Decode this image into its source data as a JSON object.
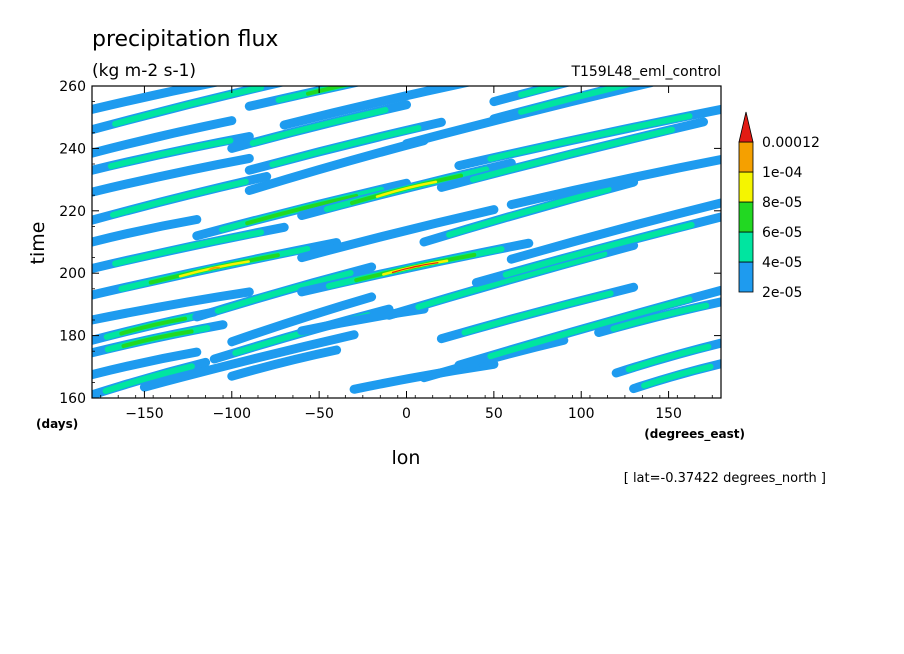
{
  "chart_data": {
    "type": "heatmap",
    "title": "precipitation flux",
    "subtitle": "(kg m-2 s-1)",
    "run_label": "T159L48_eml_control",
    "xlabel": "lon",
    "x_units": "(degrees_east)",
    "ylabel": "time",
    "y_units": "(days)",
    "footnote": "[ lat=-0.37422 degrees_north ]",
    "xlim": [
      -180,
      180
    ],
    "ylim": [
      160,
      260
    ],
    "x_ticks": [
      -150,
      -100,
      -50,
      0,
      50,
      100,
      150
    ],
    "y_ticks": [
      160,
      180,
      200,
      220,
      240,
      260
    ],
    "legend": {
      "position": "right",
      "levels": [
        "2e-05",
        "4e-05",
        "6e-05",
        "8e-05",
        "1e-04",
        "0.00012"
      ],
      "colors": [
        "#1e9bef",
        "#00e5a0",
        "#22d822",
        "#f5f500",
        "#f5a000",
        "#e21b14"
      ]
    },
    "bands": [
      {
        "lon_start": -180,
        "time_start": 161.0,
        "slope": 0.16,
        "length": 65,
        "peak": 1
      },
      {
        "lon_start": -150,
        "time_start": 163.5,
        "slope": 0.14,
        "length": 120,
        "peak": 0
      },
      {
        "lon_start": -30,
        "time_start": 162.8,
        "slope": 0.1,
        "length": 80,
        "peak": 0
      },
      {
        "lon_start": 130,
        "time_start": 163.0,
        "slope": 0.16,
        "length": 50,
        "peak": 1
      },
      {
        "lon_start": -180,
        "time_start": 167.5,
        "slope": 0.12,
        "length": 60,
        "peak": 0
      },
      {
        "lon_start": -100,
        "time_start": 167.0,
        "slope": 0.14,
        "length": 60,
        "peak": 0
      },
      {
        "lon_start": 10,
        "time_start": 166.5,
        "slope": 0.15,
        "length": 80,
        "peak": 0
      },
      {
        "lon_start": 120,
        "time_start": 168.0,
        "slope": 0.16,
        "length": 60,
        "peak": 1
      },
      {
        "lon_start": -180,
        "time_start": 174.5,
        "slope": 0.12,
        "length": 75,
        "peak": 2
      },
      {
        "lon_start": -110,
        "time_start": 172.5,
        "slope": 0.16,
        "length": 100,
        "peak": 1
      },
      {
        "lon_start": 30,
        "time_start": 170.5,
        "slope": 0.16,
        "length": 150,
        "peak": 1
      },
      {
        "lon_start": -180,
        "time_start": 178.5,
        "slope": 0.13,
        "length": 70,
        "peak": 2
      },
      {
        "lon_start": -100,
        "time_start": 178.0,
        "slope": 0.18,
        "length": 80,
        "peak": 0
      },
      {
        "lon_start": -60,
        "time_start": 181.5,
        "slope": 0.1,
        "length": 70,
        "peak": 0
      },
      {
        "lon_start": 20,
        "time_start": 179.0,
        "slope": 0.15,
        "length": 110,
        "peak": 1
      },
      {
        "lon_start": 110,
        "time_start": 181.0,
        "slope": 0.14,
        "length": 70,
        "peak": 1
      },
      {
        "lon_start": -180,
        "time_start": 185.0,
        "slope": 0.1,
        "length": 90,
        "peak": 0
      },
      {
        "lon_start": -120,
        "time_start": 186.0,
        "slope": 0.16,
        "length": 100,
        "peak": 1
      },
      {
        "lon_start": -10,
        "time_start": 186.5,
        "slope": 0.16,
        "length": 140,
        "peak": 1
      },
      {
        "lon_start": -180,
        "time_start": 193.0,
        "slope": 0.12,
        "length": 140,
        "peak": 4
      },
      {
        "lon_start": -60,
        "time_start": 194.0,
        "slope": 0.12,
        "length": 130,
        "peak": 5
      },
      {
        "lon_start": 40,
        "time_start": 197.0,
        "slope": 0.15,
        "length": 140,
        "peak": 1
      },
      {
        "lon_start": -180,
        "time_start": 201.5,
        "slope": 0.12,
        "length": 110,
        "peak": 1
      },
      {
        "lon_start": -60,
        "time_start": 205.0,
        "slope": 0.14,
        "length": 110,
        "peak": 0
      },
      {
        "lon_start": 60,
        "time_start": 204.5,
        "slope": 0.15,
        "length": 120,
        "peak": 0
      },
      {
        "lon_start": -180,
        "time_start": 210.0,
        "slope": 0.12,
        "length": 60,
        "peak": 0
      },
      {
        "lon_start": -120,
        "time_start": 212.0,
        "slope": 0.14,
        "length": 120,
        "peak": 2
      },
      {
        "lon_start": 10,
        "time_start": 210.0,
        "slope": 0.16,
        "length": 120,
        "peak": 1
      },
      {
        "lon_start": -180,
        "time_start": 217.0,
        "slope": 0.14,
        "length": 100,
        "peak": 1
      },
      {
        "lon_start": -60,
        "time_start": 218.5,
        "slope": 0.14,
        "length": 120,
        "peak": 3
      },
      {
        "lon_start": 60,
        "time_start": 222.0,
        "slope": 0.12,
        "length": 120,
        "peak": 0
      },
      {
        "lon_start": -180,
        "time_start": 226.0,
        "slope": 0.12,
        "length": 90,
        "peak": 0
      },
      {
        "lon_start": -90,
        "time_start": 226.5,
        "slope": 0.16,
        "length": 100,
        "peak": 0
      },
      {
        "lon_start": 20,
        "time_start": 227.5,
        "slope": 0.14,
        "length": 150,
        "peak": 1
      },
      {
        "lon_start": -180,
        "time_start": 233.0,
        "slope": 0.12,
        "length": 90,
        "peak": 1
      },
      {
        "lon_start": -90,
        "time_start": 233.0,
        "slope": 0.14,
        "length": 110,
        "peak": 1
      },
      {
        "lon_start": 30,
        "time_start": 234.5,
        "slope": 0.12,
        "length": 150,
        "peak": 1
      },
      {
        "lon_start": -180,
        "time_start": 238.5,
        "slope": 0.13,
        "length": 80,
        "peak": 0
      },
      {
        "lon_start": -100,
        "time_start": 240.0,
        "slope": 0.14,
        "length": 100,
        "peak": 1
      },
      {
        "lon_start": 0,
        "time_start": 241.5,
        "slope": 0.14,
        "length": 140,
        "peak": 0
      },
      {
        "lon_start": -180,
        "time_start": 246.0,
        "slope": 0.14,
        "length": 110,
        "peak": 1
      },
      {
        "lon_start": -70,
        "time_start": 247.5,
        "slope": 0.13,
        "length": 110,
        "peak": 0
      },
      {
        "lon_start": 50,
        "time_start": 249.5,
        "slope": 0.14,
        "length": 130,
        "peak": 1
      },
      {
        "lon_start": -180,
        "time_start": 252.5,
        "slope": 0.12,
        "length": 90,
        "peak": 0
      },
      {
        "lon_start": -90,
        "time_start": 253.5,
        "slope": 0.12,
        "length": 140,
        "peak": 2
      },
      {
        "lon_start": 50,
        "time_start": 255.0,
        "slope": 0.14,
        "length": 130,
        "peak": 1
      }
    ]
  }
}
